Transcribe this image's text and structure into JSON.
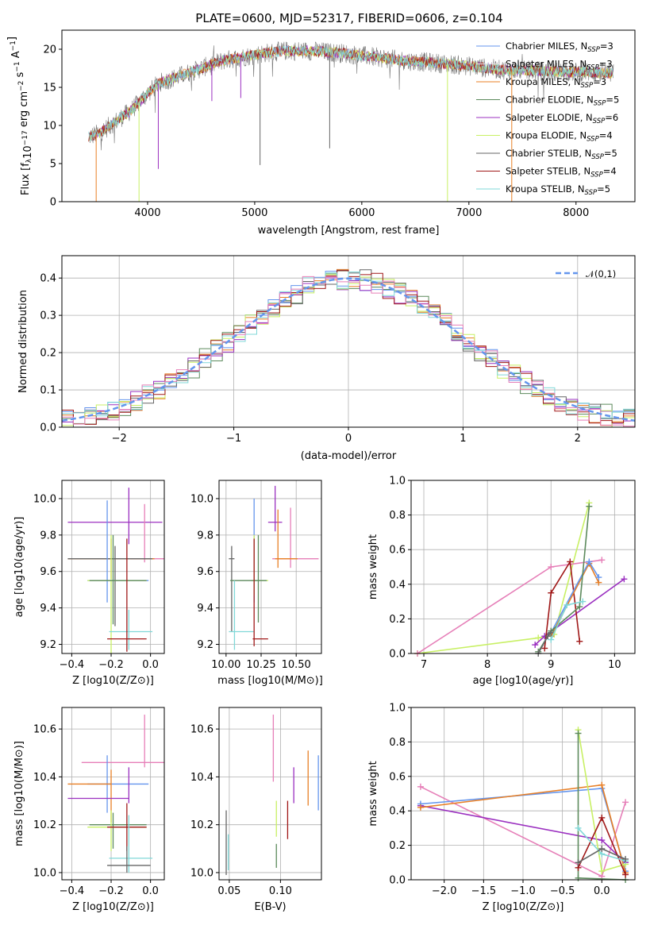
{
  "figure_title": "PLATE=0600, MJD=52317, FIBERID=0606, z=0.104",
  "colors": {
    "Chabrier MILES": "#6495ed",
    "Salpeter MILES": "#e5e5e5",
    "Kroupa MILES": "#e87f25",
    "Chabrier ELODIE": "#5c8a5c",
    "Salpeter ELODIE": "#9b30c0",
    "Kroupa ELODIE": "#c8f064",
    "Chabrier STELIB": "#666666",
    "Salpeter STELIB": "#a01818",
    "Kroupa STELIB": "#80d8d8",
    "pink": "#e67fb8",
    "spectrum_grey": "#777777"
  },
  "chart_data": [
    {
      "id": "spectrum",
      "type": "line",
      "title": "PLATE=0600, MJD=52317, FIBERID=0606, z=0.104",
      "xlabel": "wavelength [Angstrom, rest frame]",
      "ylabel": "Flux [f_λ 10^-17 erg cm^-2 s^-1 A^-1]",
      "xlim": [
        3200,
        8550
      ],
      "ylim": [
        0,
        22.5
      ],
      "xticks": [
        4000,
        5000,
        6000,
        7000,
        8000
      ],
      "yticks": [
        0,
        5,
        10,
        15,
        20
      ],
      "grid": false,
      "legend_position": "upper-right",
      "data_wavelength_range": [
        3450,
        8350
      ],
      "envelope": {
        "x": [
          3450,
          3550,
          3650,
          3750,
          3850,
          3950,
          4100,
          4300,
          4500,
          4700,
          4900,
          5100,
          5300,
          5500,
          5800,
          6100,
          6400,
          6700,
          7000,
          7300,
          7600,
          7900,
          8100,
          8350
        ],
        "y": [
          8.5,
          9.0,
          10.0,
          11.0,
          12.0,
          13.5,
          15.5,
          16.5,
          17.5,
          18.5,
          19.0,
          19.5,
          19.8,
          19.8,
          19.5,
          19.0,
          18.5,
          18.2,
          17.8,
          17.3,
          17.2,
          17.0,
          17.0,
          16.8
        ]
      },
      "legend": [
        {
          "label": "Chabrier MILES, N",
          "sub": "SSP",
          "n": "=3",
          "color_key": "Chabrier MILES"
        },
        {
          "label": "Salpeter MILES, N",
          "sub": "SSP",
          "n": "=3",
          "color_key": "Salpeter MILES"
        },
        {
          "label": "Kroupa MILES, N",
          "sub": "SSP",
          "n": "=3",
          "color_key": "Kroupa MILES"
        },
        {
          "label": "Chabrier ELODIE, N",
          "sub": "SSP",
          "n": "=5",
          "color_key": "Chabrier ELODIE"
        },
        {
          "label": "Salpeter ELODIE, N",
          "sub": "SSP",
          "n": "=6",
          "color_key": "Salpeter ELODIE"
        },
        {
          "label": "Kroupa ELODIE, N",
          "sub": "SSP",
          "n": "=4",
          "color_key": "Kroupa ELODIE"
        },
        {
          "label": "Chabrier STELIB, N",
          "sub": "SSP",
          "n": "=5",
          "color_key": "Chabrier STELIB"
        },
        {
          "label": "Salpeter STELIB, N",
          "sub": "SSP",
          "n": "=4",
          "color_key": "Salpeter STELIB"
        },
        {
          "label": "Kroupa STELIB, N",
          "sub": "SSP",
          "n": "=5",
          "color_key": "Kroupa STELIB"
        }
      ]
    },
    {
      "id": "residuals",
      "type": "histogram",
      "xlabel": "(data-model)/error",
      "ylabel": "Normed distribution",
      "xlim": [
        -2.5,
        2.5
      ],
      "ylim": [
        0,
        0.46
      ],
      "xticks": [
        -2,
        -1,
        0,
        1,
        2
      ],
      "yticks": [
        0.0,
        0.1,
        0.2,
        0.3,
        0.4
      ],
      "grid": true,
      "bin_width": 0.1,
      "reference_curve": {
        "label": "𝒩(0,1)",
        "mean": 0,
        "sigma": 1,
        "peak": 0.399,
        "style": "dashed",
        "color": "#6495ed"
      },
      "legend_position": "upper-right"
    },
    {
      "id": "z_vs_age",
      "type": "errorbar",
      "xlabel": "Z [log10(Z/Z⊙)]",
      "ylabel": "age  [log10(age/yr)]",
      "xlim": [
        -0.45,
        0.07
      ],
      "ylim": [
        9.15,
        10.1
      ],
      "xticks": [
        -0.4,
        -0.2,
        0.0
      ],
      "yticks": [
        9.2,
        9.4,
        9.6,
        9.8,
        10.0
      ],
      "grid": true,
      "series": [
        {
          "color": "#9b30c0",
          "x": -0.11,
          "y": 9.87,
          "xerr": [
            0.31,
            0.17
          ],
          "yerr": [
            0.12,
            0.19
          ]
        },
        {
          "color": "#e67fb8",
          "x": -0.03,
          "y": 9.67,
          "xerr": [
            0.07,
            0.1
          ],
          "yerr": [
            0.02,
            0.3
          ]
        },
        {
          "color": "#e87f25",
          "x": -0.2,
          "y": 9.67,
          "xerr": [
            0.22,
            0.22
          ],
          "yerr": [
            0.11,
            0.11
          ]
        },
        {
          "color": "#666666",
          "x": -0.18,
          "y": 9.67,
          "xerr": [
            0.24,
            0.19
          ],
          "yerr": [
            0.37,
            0.07
          ]
        },
        {
          "color": "#6495ed",
          "x": -0.22,
          "y": 9.55,
          "xerr": [
            0.1,
            0.21
          ],
          "yerr": [
            0.12,
            0.44
          ]
        },
        {
          "color": "#c8f064",
          "x": -0.2,
          "y": 9.55,
          "xerr": [
            0.12,
            0.18
          ],
          "yerr": [
            0.4,
            0.25
          ]
        },
        {
          "color": "#5c8a5c",
          "x": -0.19,
          "y": 9.55,
          "xerr": [
            0.12,
            0.17
          ],
          "yerr": [
            0.24,
            0.25
          ]
        },
        {
          "color": "#80d8d8",
          "x": -0.11,
          "y": 9.27,
          "xerr": [
            0.1,
            0.12
          ],
          "yerr": [
            0.1,
            0.12
          ]
        },
        {
          "color": "#a01818",
          "x": -0.12,
          "y": 9.23,
          "xerr": [
            0.1,
            0.1
          ],
          "yerr": [
            0.07,
            0.55
          ]
        }
      ]
    },
    {
      "id": "mass_vs_age",
      "type": "errorbar",
      "xlabel": "mass [log10(M/M⊙)]",
      "xlim": [
        9.95,
        10.68
      ],
      "ylim": [
        9.15,
        10.1
      ],
      "xticks": [
        10.0,
        10.25,
        10.5
      ],
      "yticks": [
        9.2,
        9.4,
        9.6,
        9.8,
        10.0
      ],
      "grid": true,
      "series": [
        {
          "color": "#9b30c0",
          "x": 10.35,
          "y": 9.87,
          "xerr": [
            0.05,
            0.05
          ],
          "yerr": [
            0.05,
            0.2
          ]
        },
        {
          "color": "#e67fb8",
          "x": 10.46,
          "y": 9.67,
          "xerr": [
            0.13,
            0.2
          ],
          "yerr": [
            0.05,
            0.28
          ]
        },
        {
          "color": "#e87f25",
          "x": 10.37,
          "y": 9.67,
          "xerr": [
            0.02,
            0.14
          ],
          "yerr": [
            0.05,
            0.27
          ]
        },
        {
          "color": "#666666",
          "x": 10.04,
          "y": 9.67,
          "xerr": [
            0.02,
            0.02
          ],
          "yerr": [
            0.4,
            0.07
          ]
        },
        {
          "color": "#6495ed",
          "x": 10.2,
          "y": 9.55,
          "xerr": [
            0.02,
            0.02
          ],
          "yerr": [
            0.12,
            0.45
          ]
        },
        {
          "color": "#c8f064",
          "x": 10.2,
          "y": 9.55,
          "xerr": [
            0.02,
            0.1
          ],
          "yerr": [
            0.08,
            0.25
          ]
        },
        {
          "color": "#5c8a5c",
          "x": 10.23,
          "y": 9.55,
          "xerr": [
            0.2,
            0.06
          ],
          "yerr": [
            0.23,
            0.25
          ]
        },
        {
          "color": "#80d8d8",
          "x": 10.06,
          "y": 9.27,
          "xerr": [
            0.04,
            0.14
          ],
          "yerr": [
            0.1,
            0.28
          ]
        },
        {
          "color": "#a01818",
          "x": 10.2,
          "y": 9.23,
          "xerr": [
            0.01,
            0.1
          ],
          "yerr": [
            0.04,
            0.55
          ]
        }
      ]
    },
    {
      "id": "age_vs_weight",
      "type": "line",
      "xlabel": "age  [log10(age/yr)]",
      "ylabel": "mass weight",
      "xlim": [
        6.8,
        10.32
      ],
      "ylim": [
        0,
        1.0
      ],
      "xticks": [
        7,
        8,
        9,
        10
      ],
      "yticks": [
        0.0,
        0.2,
        0.4,
        0.6,
        0.8,
        1.0
      ],
      "grid": true,
      "series": [
        {
          "color": "#c8f064",
          "x": [
            6.9,
            8.8,
            9.05,
            9.6
          ],
          "y": [
            0.0,
            0.09,
            0.11,
            0.87
          ]
        },
        {
          "color": "#e67fb8",
          "x": [
            6.9,
            9.0,
            9.8
          ],
          "y": [
            0.0,
            0.5,
            0.54
          ]
        },
        {
          "color": "#9b30c0",
          "x": [
            8.75,
            8.9,
            10.15
          ],
          "y": [
            0.05,
            0.1,
            0.43
          ]
        },
        {
          "color": "#a01818",
          "x": [
            8.9,
            9.0,
            9.3,
            9.45
          ],
          "y": [
            0.03,
            0.35,
            0.53,
            0.07
          ]
        },
        {
          "color": "#e87f25",
          "x": [
            9.0,
            9.6,
            9.75
          ],
          "y": [
            0.1,
            0.52,
            0.41
          ]
        },
        {
          "color": "#6495ed",
          "x": [
            9.0,
            9.6,
            9.75
          ],
          "y": [
            0.12,
            0.53,
            0.44
          ]
        },
        {
          "color": "#5c8a5c",
          "x": [
            8.8,
            9.0,
            9.45,
            9.6
          ],
          "y": [
            0.01,
            0.13,
            0.27,
            0.85
          ]
        },
        {
          "color": "#666666",
          "x": [
            8.8,
            8.95,
            9.0
          ],
          "y": [
            0.0,
            0.1,
            0.12
          ]
        },
        {
          "color": "#80d8d8",
          "x": [
            9.0,
            9.25,
            9.5
          ],
          "y": [
            0.08,
            0.28,
            0.3
          ]
        }
      ]
    },
    {
      "id": "z_vs_mass",
      "type": "errorbar",
      "xlabel": "Z [log10(Z/Z⊙)]",
      "ylabel": "mass [log10(M/M⊙)]",
      "xlim": [
        -0.45,
        0.07
      ],
      "ylim": [
        9.97,
        10.69
      ],
      "xticks": [
        -0.4,
        -0.2,
        0.0
      ],
      "yticks": [
        10.0,
        10.2,
        10.4,
        10.6
      ],
      "grid": true,
      "series": [
        {
          "color": "#e67fb8",
          "x": -0.03,
          "y": 10.46,
          "xerr": [
            0.32,
            0.1
          ],
          "yerr": [
            0.02,
            0.2
          ]
        },
        {
          "color": "#6495ed",
          "x": -0.22,
          "y": 10.37,
          "xerr": [
            0.1,
            0.21
          ],
          "yerr": [
            0.12,
            0.12
          ]
        },
        {
          "color": "#e87f25",
          "x": -0.2,
          "y": 10.37,
          "xerr": [
            0.22,
            0.0
          ],
          "yerr": [
            0.16,
            0.06
          ]
        },
        {
          "color": "#9b30c0",
          "x": -0.11,
          "y": 10.31,
          "xerr": [
            0.31,
            0.0
          ],
          "yerr": [
            0.02,
            0.13
          ]
        },
        {
          "color": "#5c8a5c",
          "x": -0.19,
          "y": 10.2,
          "xerr": [
            0.12,
            0.17
          ],
          "yerr": [
            0.1,
            0.05
          ]
        },
        {
          "color": "#c8f064",
          "x": -0.2,
          "y": 10.19,
          "xerr": [
            0.12,
            0.18
          ],
          "yerr": [
            0.1,
            0.07
          ]
        },
        {
          "color": "#a01818",
          "x": -0.12,
          "y": 10.19,
          "xerr": [
            0.1,
            0.1
          ],
          "yerr": [
            0.1,
            0.1
          ]
        },
        {
          "color": "#80d8d8",
          "x": -0.11,
          "y": 10.06,
          "xerr": [
            0.1,
            0.12
          ],
          "yerr": [
            0.06,
            0.18
          ]
        },
        {
          "color": "#666666",
          "x": -0.12,
          "y": 10.03,
          "xerr": [
            0.1,
            0.12
          ],
          "yerr": [
            0.03,
            0.08
          ]
        }
      ]
    },
    {
      "id": "ebv_vs_mass",
      "type": "errorbar",
      "xlabel": "E(B-V)",
      "xlim": [
        0.04,
        0.14
      ],
      "ylim": [
        9.97,
        10.69
      ],
      "xticks": [
        0.05,
        0.1
      ],
      "yticks": [
        10.0,
        10.2,
        10.4,
        10.6
      ],
      "grid": true,
      "series": [
        {
          "color": "#666666",
          "x": 0.047,
          "y": 10.12,
          "yerr": [
            0.13,
            0.14
          ]
        },
        {
          "color": "#80d8d8",
          "x": 0.049,
          "y": 10.08,
          "yerr": [
            0.07,
            0.08
          ]
        },
        {
          "color": "#e67fb8",
          "x": 0.093,
          "y": 10.5,
          "yerr": [
            0.12,
            0.16
          ]
        },
        {
          "color": "#c8f064",
          "x": 0.096,
          "y": 10.2,
          "yerr": [
            0.05,
            0.1
          ]
        },
        {
          "color": "#5c8a5c",
          "x": 0.096,
          "y": 10.07,
          "yerr": [
            0.05,
            0.05
          ]
        },
        {
          "color": "#a01818",
          "x": 0.107,
          "y": 10.2,
          "yerr": [
            0.06,
            0.1
          ]
        },
        {
          "color": "#9b30c0",
          "x": 0.113,
          "y": 10.34,
          "yerr": [
            0.05,
            0.1
          ]
        },
        {
          "color": "#e87f25",
          "x": 0.127,
          "y": 10.37,
          "yerr": [
            0.09,
            0.14
          ]
        },
        {
          "color": "#6495ed",
          "x": 0.137,
          "y": 10.37,
          "yerr": [
            0.11,
            0.12
          ]
        }
      ]
    },
    {
      "id": "z_vs_weight",
      "type": "line",
      "xlabel": "Z [log10(Z/Z⊙)]",
      "ylabel": "mass weight",
      "xlim": [
        -2.42,
        0.42
      ],
      "ylim": [
        0,
        1.0
      ],
      "xticks": [
        -2.0,
        -1.5,
        -1.0,
        -0.5,
        0.0
      ],
      "yticks": [
        0.0,
        0.2,
        0.4,
        0.6,
        0.8,
        1.0
      ],
      "grid": true,
      "series": [
        {
          "color": "#e67fb8",
          "x": [
            -2.3,
            0.0,
            0.3
          ],
          "y": [
            0.54,
            0.02,
            0.45
          ]
        },
        {
          "color": "#9b30c0",
          "x": [
            -2.3,
            0.0,
            0.3
          ],
          "y": [
            0.43,
            0.23,
            0.1
          ]
        },
        {
          "color": "#6495ed",
          "x": [
            -2.3,
            0.0,
            0.3
          ],
          "y": [
            0.44,
            0.53,
            0.05
          ]
        },
        {
          "color": "#e87f25",
          "x": [
            -2.3,
            0.0,
            0.3
          ],
          "y": [
            0.42,
            0.55,
            0.04
          ]
        },
        {
          "color": "#c8f064",
          "x": [
            -0.3,
            0.0,
            0.3
          ],
          "y": [
            0.87,
            0.05,
            0.09
          ]
        },
        {
          "color": "#5c8a5c",
          "x": [
            -0.3,
            -0.3,
            0.3
          ],
          "y": [
            0.85,
            0.01,
            0.0
          ]
        },
        {
          "color": "#a01818",
          "x": [
            -0.3,
            0.0,
            0.3
          ],
          "y": [
            0.07,
            0.36,
            0.03
          ]
        },
        {
          "color": "#80d8d8",
          "x": [
            -0.3,
            0.0,
            0.3
          ],
          "y": [
            0.3,
            0.15,
            0.11
          ]
        },
        {
          "color": "#666666",
          "x": [
            -0.3,
            0.0,
            0.3
          ],
          "y": [
            0.1,
            0.18,
            0.12
          ]
        }
      ]
    }
  ]
}
